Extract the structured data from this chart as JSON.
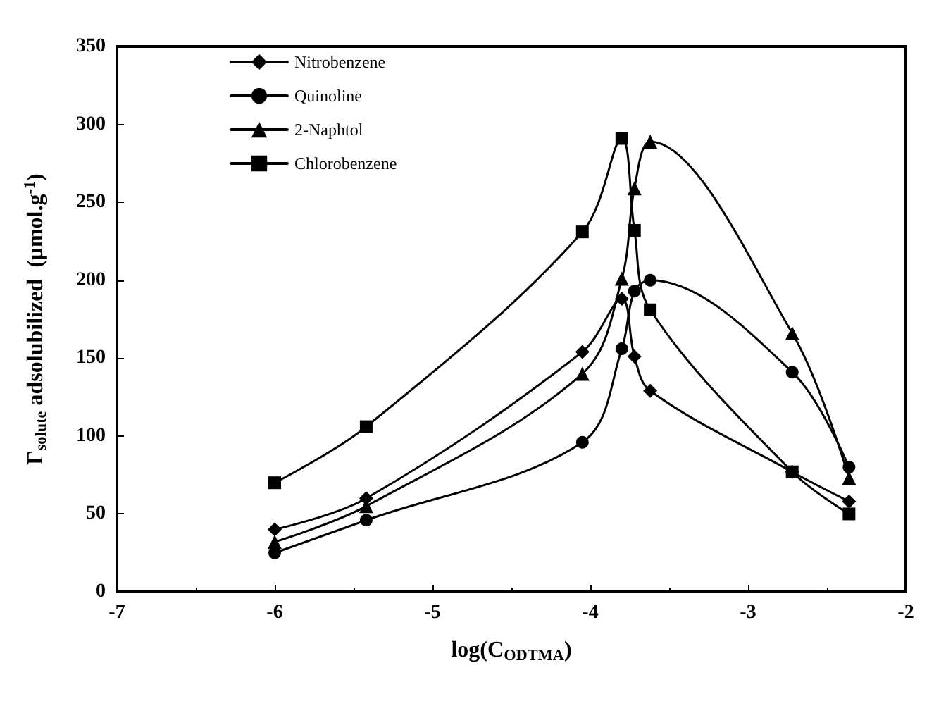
{
  "chart_data": {
    "type": "line",
    "xlabel": "log(C$_{ODTMA}$)",
    "ylabel": "Γ$_{solute}$ adsolubilized  (μmol.g$^{-1}$)",
    "xlim": [
      -7,
      -2
    ],
    "xticks": [
      -7,
      -6,
      -5,
      -4,
      -3,
      -2
    ],
    "ylim": [
      0,
      350
    ],
    "yticks": [
      0,
      50,
      100,
      150,
      200,
      250,
      300,
      350
    ],
    "grid": false,
    "legend": "top left",
    "line_style": "solid",
    "x": [
      -6.0,
      -5.42,
      -4.05,
      -3.8,
      -3.72,
      -3.62,
      -2.72,
      -2.36
    ],
    "series": [
      {
        "name": "Nitrobenzene",
        "color": "#000000",
        "marker": "diamond",
        "values": [
          40,
          60,
          154,
          188,
          151,
          129,
          77,
          58
        ]
      },
      {
        "name": "Quinoline",
        "color": "#000000",
        "marker": "circle",
        "values": [
          25,
          46,
          96,
          156,
          193,
          200,
          141,
          80
        ]
      },
      {
        "name": "2-Naphtol",
        "color": "#000000",
        "marker": "triangle",
        "values": [
          32,
          55,
          140,
          201,
          259,
          289,
          166,
          73
        ]
      },
      {
        "name": "Chlorobenzene",
        "color": "#000000",
        "marker": "square",
        "values": [
          70,
          106,
          231,
          291,
          232,
          181,
          77,
          50
        ]
      }
    ]
  }
}
